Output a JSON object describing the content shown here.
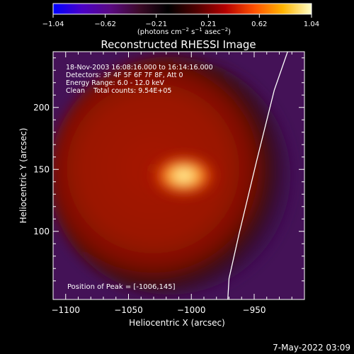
{
  "chart_data": {
    "type": "heatmap",
    "title": "Reconstructed RHESSI Image",
    "xlabel": "Heliocentric X (arcsec)",
    "ylabel": "Heliocentric Y (arcsec)",
    "xlim": [
      -1110,
      -910
    ],
    "ylim": [
      45,
      245
    ],
    "xticks": [
      -1100,
      -1050,
      -1000,
      -950
    ],
    "xtick_labels": [
      "−1100",
      "−1050",
      "−1000",
      "−950"
    ],
    "yticks": [
      100,
      150,
      200
    ],
    "ytick_labels": [
      "100",
      "150",
      "200"
    ],
    "colorbar": {
      "range": [
        -1.04,
        1.04
      ],
      "ticks": [
        -1.04,
        -0.62,
        -0.21,
        0.21,
        0.62,
        1.04
      ],
      "tick_labels": [
        "−1.04",
        "−0.62",
        "−0.21",
        "0.21",
        "0.62",
        "1.04"
      ],
      "unit_prefix": "(photons cm",
      "unit_exp1": "−2",
      "unit_mid": " s",
      "unit_exp2": "−1",
      "unit_mid2": " asec",
      "unit_exp3": "−2",
      "unit_suffix": ")",
      "colors": [
        "#0000ff",
        "#4b00c8",
        "#5a0a82",
        "#3c0a28",
        "#000000",
        "#500000",
        "#b40000",
        "#ff5000",
        "#ffb400",
        "#ffffc8"
      ]
    },
    "annotations": [
      "18-Nov-2003 16:08:16.000 to 16:14:16.000",
      "Detectors: 3F 4F 5F 6F 7F 8F, Att 0",
      "Energy Range: 6.0 - 12.0 keV",
      "Clean    Total counts: 9.54E+05"
    ],
    "peak_label": "Position of Peak = [-1006,145]",
    "peak": {
      "x": -1006,
      "y": 145
    },
    "limb_points": [
      [
        -922,
        249
      ],
      [
        -934,
        214
      ],
      [
        -948,
        157
      ],
      [
        -962,
        98
      ],
      [
        -970,
        62
      ],
      [
        -971,
        45
      ]
    ],
    "footer": "7-May-2022 03:09"
  }
}
